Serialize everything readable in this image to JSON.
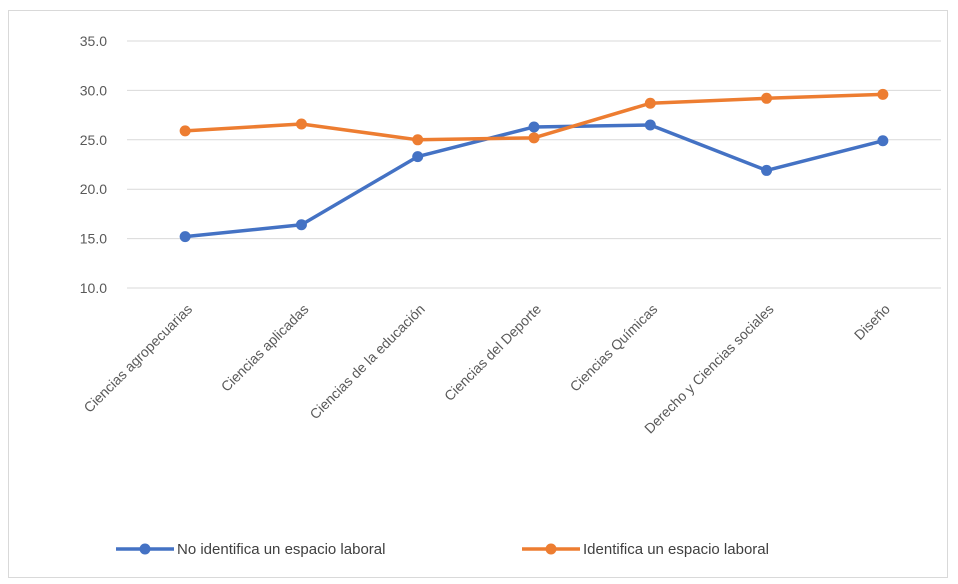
{
  "chart_data": {
    "type": "line",
    "categories": [
      "Ciencias agropecuarias",
      "Ciencias aplicadas",
      "Ciencias de la educación",
      "Ciencias del Deporte",
      "Ciencias Químicas",
      "Derecho y Ciencias sociales",
      "Diseño"
    ],
    "series": [
      {
        "name": "No identifica un espacio laboral",
        "color": "#4472c4",
        "values": [
          15.2,
          16.4,
          23.3,
          26.3,
          26.5,
          21.9,
          24.9
        ]
      },
      {
        "name": "Identifica un espacio laboral",
        "color": "#ed7d31",
        "values": [
          25.9,
          26.6,
          25.0,
          25.2,
          28.7,
          29.2,
          29.6
        ]
      }
    ],
    "yticks": [
      "10.0",
      "15.0",
      "20.0",
      "25.0",
      "30.0",
      "35.0"
    ],
    "ylim": [
      10,
      35
    ],
    "grid": true,
    "legend_position": "bottom",
    "title": "",
    "xlabel": "",
    "ylabel": ""
  }
}
